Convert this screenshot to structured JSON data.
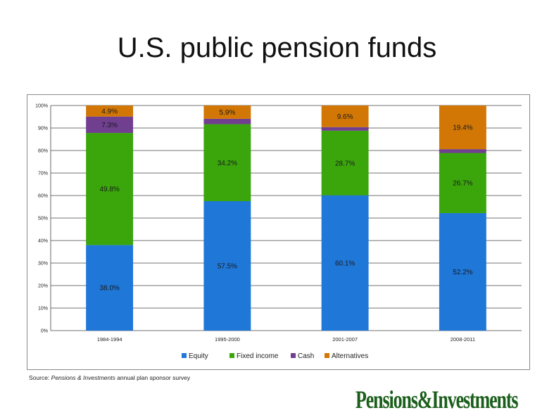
{
  "page": {
    "title": "U.S. public pension funds",
    "source_prefix": "Source: ",
    "source_publication": "Pensions & Investments",
    "source_suffix": " annual plan sponsor survey",
    "brand_logo_text": "Pensions&Investments",
    "colors": {
      "equity": "#1f77d8",
      "fixed_income": "#3aa60c",
      "cash": "#713f90",
      "alternatives": "#d27705",
      "logo": "#1b5e1b"
    }
  },
  "chart_data": {
    "type": "bar",
    "stacked": true,
    "title": "",
    "xlabel": "",
    "ylabel": "",
    "ylim": [
      0,
      100
    ],
    "y_ticks": [
      "0%",
      "10%",
      "20%",
      "30%",
      "40%",
      "50%",
      "60%",
      "70%",
      "80%",
      "90%",
      "100%"
    ],
    "grid": true,
    "legend_position": "bottom",
    "categories": [
      "1984-1994",
      "1995-2000",
      "2001-2007",
      "2008-2011"
    ],
    "series": [
      {
        "name": "Equity",
        "color": "#1f77d8",
        "values": [
          38.0,
          57.5,
          60.1,
          52.2
        ],
        "labels": [
          "38.0%",
          "57.5%",
          "60.1%",
          "52.2%"
        ]
      },
      {
        "name": "Fixed income",
        "color": "#3aa60c",
        "values": [
          49.8,
          34.2,
          28.7,
          26.7
        ],
        "labels": [
          "49.8%",
          "34.2%",
          "28.7%",
          "26.7%"
        ]
      },
      {
        "name": "Cash",
        "color": "#713f90",
        "values": [
          7.3,
          2.4,
          1.6,
          1.7
        ],
        "labels": [
          "7.3%",
          "",
          "",
          ""
        ]
      },
      {
        "name": "Alternatives",
        "color": "#d27705",
        "values": [
          4.9,
          5.9,
          9.6,
          19.4
        ],
        "labels": [
          "4.9%",
          "5.9%",
          "9.6%",
          "19.4%"
        ]
      }
    ]
  }
}
